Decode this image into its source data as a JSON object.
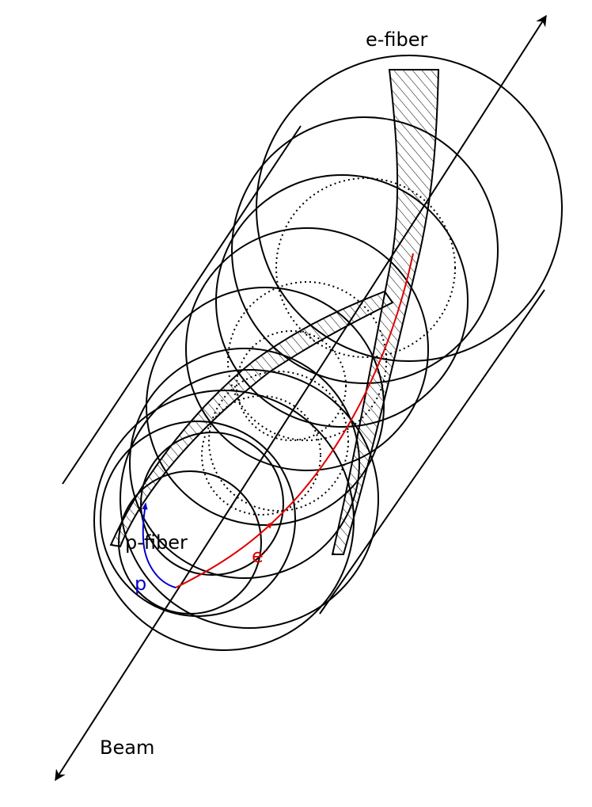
{
  "labels": {
    "e_fiber": "e-fiber",
    "p_fiber": "p-fiber",
    "beam": "Beam",
    "electron": "e",
    "electron_charge": "-",
    "proton": "p"
  },
  "colors": {
    "ink": "#000000",
    "electron": "#e00000",
    "proton": "#0000cc",
    "background": "#ffffff"
  }
}
